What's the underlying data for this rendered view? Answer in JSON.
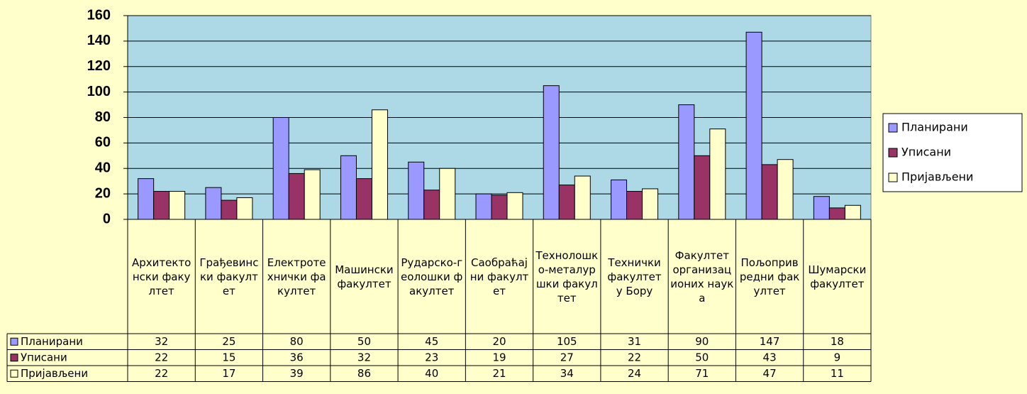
{
  "chart_data": {
    "type": "bar",
    "categories": [
      "Архитектонски факултет",
      "Грађевински факултет",
      "Електротехнички факултет",
      "Машински факултет",
      "Рударско-геолошки факултет",
      "Саобраћајни факултет",
      "Технолошко-металуршки факултет",
      "Технички факултет у Бору",
      "Факултет организационих наука",
      "Пољопривредни факултет",
      "Шумарски факултет"
    ],
    "series": [
      {
        "name": "Планирани",
        "color": "#9999ff",
        "values": [
          32,
          25,
          80,
          50,
          45,
          20,
          105,
          31,
          90,
          147,
          18
        ]
      },
      {
        "name": "Уписани",
        "color": "#993366",
        "values": [
          22,
          15,
          36,
          32,
          23,
          19,
          27,
          22,
          50,
          43,
          9
        ]
      },
      {
        "name": "Пријављени",
        "color": "#ffffcc",
        "values": [
          22,
          17,
          39,
          86,
          40,
          21,
          34,
          24,
          71,
          47,
          11
        ]
      }
    ],
    "ylim": [
      0,
      160
    ],
    "yticks": [
      0,
      20,
      40,
      60,
      80,
      100,
      120,
      140,
      160
    ],
    "grid": true,
    "legend": "right"
  }
}
